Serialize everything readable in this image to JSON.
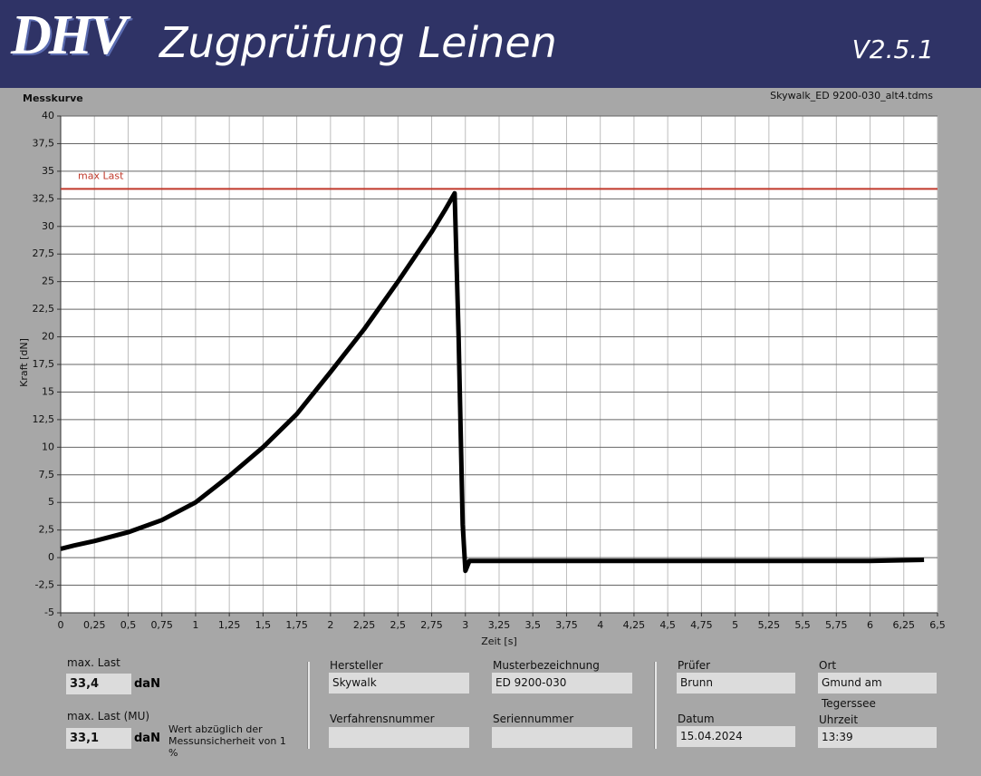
{
  "header": {
    "logo": "DHV",
    "title": "Zugprüfung Leinen",
    "version": "V2.5.1"
  },
  "chart_data": {
    "type": "line",
    "title": "Messkurve",
    "subtitle": "Skywalk_ED 9200-030_alt4.tdms",
    "x_label": "Zeit [s]",
    "y_label": "Kraft [dN]",
    "color": "#000000",
    "grid": true,
    "x": [
      0,
      0.1,
      0.25,
      0.5,
      0.75,
      1,
      1.25,
      1.5,
      1.75,
      2,
      2.25,
      2.5,
      2.75,
      2.85,
      2.92,
      2.95,
      2.98,
      3.0,
      3.03,
      3.1,
      3.5,
      4,
      4.5,
      5,
      5.5,
      6,
      6.4
    ],
    "values": [
      0.8,
      1.1,
      1.5,
      2.3,
      3.4,
      5,
      7.4,
      10,
      13,
      16.8,
      20.7,
      25,
      29.5,
      31.5,
      33,
      20,
      3,
      -1.2,
      -0.3,
      -0.3,
      -0.3,
      -0.3,
      -0.3,
      -0.3,
      -0.3,
      -0.3,
      -0.2
    ],
    "reference": {
      "label": "max Last",
      "value": 33.4,
      "color": "#c0392b"
    },
    "xlim": [
      0,
      6.5
    ],
    "xticks": [
      0,
      {
        "value": 0.25,
        "label": "0,25"
      },
      {
        "value": 0.5,
        "label": "0,5"
      },
      {
        "value": 0.75,
        "label": "0,75"
      },
      1,
      {
        "value": 1.25,
        "label": "1,25"
      },
      {
        "value": 1.5,
        "label": "1,5"
      },
      {
        "value": 1.75,
        "label": "1,75"
      },
      2,
      {
        "value": 2.25,
        "label": "2,25"
      },
      {
        "value": 2.5,
        "label": "2,5"
      },
      {
        "value": 2.75,
        "label": "2,75"
      },
      3,
      {
        "value": 3.25,
        "label": "3,25"
      },
      {
        "value": 3.5,
        "label": "3,5"
      },
      {
        "value": 3.75,
        "label": "3,75"
      },
      4,
      {
        "value": 4.25,
        "label": "4,25"
      },
      {
        "value": 4.5,
        "label": "4,5"
      },
      {
        "value": 4.75,
        "label": "4,75"
      },
      5,
      {
        "value": 5.25,
        "label": "5,25"
      },
      {
        "value": 5.5,
        "label": "5,5"
      },
      {
        "value": 5.75,
        "label": "5,75"
      },
      6,
      {
        "value": 6.25,
        "label": "6,25"
      },
      {
        "value": 6.5,
        "label": "6,5"
      }
    ],
    "ylim": [
      -5,
      40
    ],
    "yticks": [
      -5,
      {
        "value": -2.5,
        "label": "-2,5"
      },
      0,
      {
        "value": 2.5,
        "label": "2,5"
      },
      5,
      {
        "value": 7.5,
        "label": "7,5"
      },
      10,
      {
        "value": 12.5,
        "label": "12,5"
      },
      15,
      {
        "value": 17.5,
        "label": "17,5"
      },
      20,
      {
        "value": 22.5,
        "label": "22,5"
      },
      25,
      {
        "value": 27.5,
        "label": "27,5"
      },
      30,
      {
        "value": 32.5,
        "label": "32,5"
      },
      35,
      {
        "value": 37.5,
        "label": "37,5"
      },
      40
    ]
  },
  "fields": {
    "max_last": {
      "label": "max. Last",
      "value": "33,4",
      "unit": "daN"
    },
    "max_last_mu": {
      "label": "max. Last (MU)",
      "value": "33,1",
      "unit": "daN",
      "note": "Wert abzüglich der Messunsicherheit von 1 %"
    },
    "hersteller": {
      "label": "Hersteller",
      "value": "Skywalk"
    },
    "muster": {
      "label": "Musterbezeichnung",
      "value": "ED 9200-030"
    },
    "verfahren": {
      "label": "Verfahrensnummer"
    },
    "serien": {
      "label": "Seriennummer"
    },
    "pruefer": {
      "label": "Prüfer",
      "value": "Brunn"
    },
    "ort": {
      "label": "Ort",
      "value": "Gmund am Tegerssee"
    },
    "datum": {
      "label": "Datum",
      "value": "15.04.2024"
    },
    "uhrzeit": {
      "label": "Uhrzeit",
      "value": "13:39"
    }
  }
}
